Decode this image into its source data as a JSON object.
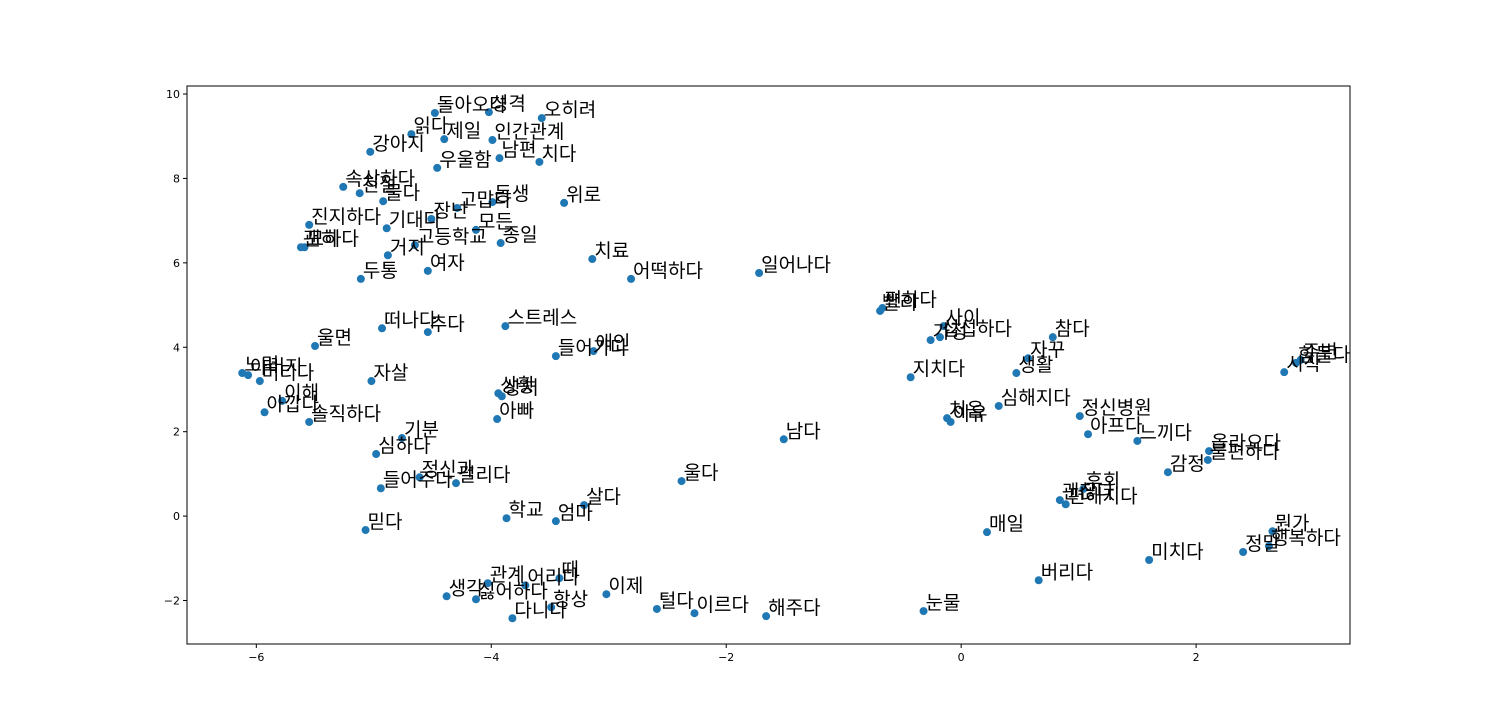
{
  "chart_data": {
    "type": "scatter",
    "color": "#1f77b4",
    "xlim": [
      -6.59,
      3.31
    ],
    "ylim": [
      -3.03,
      10.19
    ],
    "xticks": [
      {
        "value": -6,
        "label": "−6"
      },
      {
        "value": -4,
        "label": "−4"
      },
      {
        "value": -2,
        "label": "−2"
      },
      0,
      2
    ],
    "yticks": [
      {
        "value": -2,
        "label": "−2"
      },
      0,
      2,
      4,
      6,
      8,
      10
    ],
    "labels": [
      "돌아오다",
      "성격",
      "오히려",
      "읽다",
      "제일",
      "인간관계",
      "강아지",
      "남편",
      "치다",
      "우울함",
      "속상하다",
      "친절",
      "물다",
      "동생",
      "고맙다",
      "위로",
      "장난",
      "기대다",
      "진지하다",
      "모든",
      "종일",
      "고등학교",
      "거지",
      "괜히",
      "묘하다",
      "두통",
      "여자",
      "치료",
      "어떡하다",
      "일어나다",
      "빨리",
      "편하다",
      "떠나다",
      "추다",
      "스트레스",
      "울면",
      "애인",
      "들어가다",
      "사이",
      "가정",
      "섭섭하다",
      "참다",
      "자꾸",
      "생활",
      "지치다",
      "시작",
      "힘들다",
      "주변",
      "노력",
      "아버지",
      "버티다",
      "자살",
      "이해",
      "아깝다",
      "솔직하다",
      "상황",
      "상처",
      "아빠",
      "심해지다",
      "정신병원",
      "처음",
      "이유",
      "아프다",
      "느끼다",
      "남다",
      "기분",
      "심하다",
      "올라오다",
      "불편하다",
      "감정",
      "울다",
      "정신과",
      "걸리다",
      "들어주다",
      "후회",
      "괜찮다",
      "편해지다",
      "살다",
      "학교",
      "엄마",
      "믿다",
      "매일",
      "뭔가",
      "행복하다",
      "정말",
      "미치다",
      "관계",
      "때",
      "어리다",
      "생각",
      "싫어하다",
      "이제",
      "항상",
      "다니다",
      "털다",
      "이르다",
      "해주다",
      "눈물",
      "버리다"
    ],
    "x": [
      -4.48,
      -4.02,
      -3.57,
      -4.68,
      -4.4,
      -3.99,
      -5.03,
      -3.93,
      -3.59,
      -4.46,
      -5.26,
      -5.12,
      -4.92,
      -3.99,
      -4.29,
      -3.38,
      -4.51,
      -4.89,
      -5.55,
      -4.13,
      -3.92,
      -4.65,
      -4.88,
      -5.62,
      -5.59,
      -5.11,
      -4.54,
      -3.14,
      -2.81,
      -1.72,
      -0.69,
      -0.67,
      -4.93,
      -4.54,
      -3.88,
      -5.5,
      -3.13,
      -3.45,
      -0.15,
      -0.26,
      -0.18,
      0.78,
      0.57,
      0.47,
      -0.43,
      2.75,
      2.85,
      2.89,
      -6.12,
      -6.07,
      -5.97,
      -5.02,
      -5.78,
      -5.93,
      -5.55,
      -3.94,
      -3.91,
      -3.95,
      0.32,
      1.01,
      -0.12,
      -0.09,
      1.08,
      1.5,
      -1.51,
      -4.76,
      -4.98,
      2.11,
      2.1,
      1.76,
      -2.38,
      -4.61,
      -4.3,
      -4.94,
      1.04,
      0.84,
      0.89,
      -3.21,
      -3.87,
      -3.45,
      -5.07,
      0.22,
      2.65,
      2.62,
      2.4,
      1.6,
      -4.03,
      -3.42,
      -3.71,
      -4.38,
      -4.13,
      -3.02,
      -3.49,
      -3.82,
      -2.59,
      -2.27,
      -1.66,
      -0.32,
      0.66
    ],
    "values": [
      9.55,
      9.57,
      9.43,
      9.05,
      8.93,
      8.91,
      8.63,
      8.48,
      8.39,
      8.25,
      7.8,
      7.65,
      7.46,
      7.44,
      7.3,
      7.42,
      7.04,
      6.82,
      6.9,
      6.78,
      6.47,
      6.42,
      6.18,
      6.37,
      6.37,
      5.62,
      5.81,
      6.09,
      5.62,
      5.76,
      4.86,
      4.93,
      4.45,
      4.36,
      4.5,
      4.03,
      3.91,
      3.79,
      4.5,
      4.17,
      4.24,
      4.24,
      3.74,
      3.39,
      3.29,
      3.41,
      3.63,
      3.7,
      3.39,
      3.34,
      3.2,
      3.2,
      2.73,
      2.46,
      2.23,
      2.91,
      2.84,
      2.3,
      2.61,
      2.37,
      2.32,
      2.23,
      1.94,
      1.78,
      1.82,
      1.85,
      1.47,
      1.54,
      1.33,
      1.04,
      0.83,
      0.92,
      0.78,
      0.66,
      0.64,
      0.38,
      0.28,
      0.26,
      -0.05,
      -0.12,
      -0.33,
      -0.38,
      -0.36,
      -0.71,
      -0.85,
      -1.04,
      -1.59,
      -1.47,
      -1.64,
      -1.9,
      -1.97,
      -1.85,
      -2.16,
      -2.42,
      -2.2,
      -2.3,
      -2.37,
      -2.25,
      -1.52
    ]
  }
}
